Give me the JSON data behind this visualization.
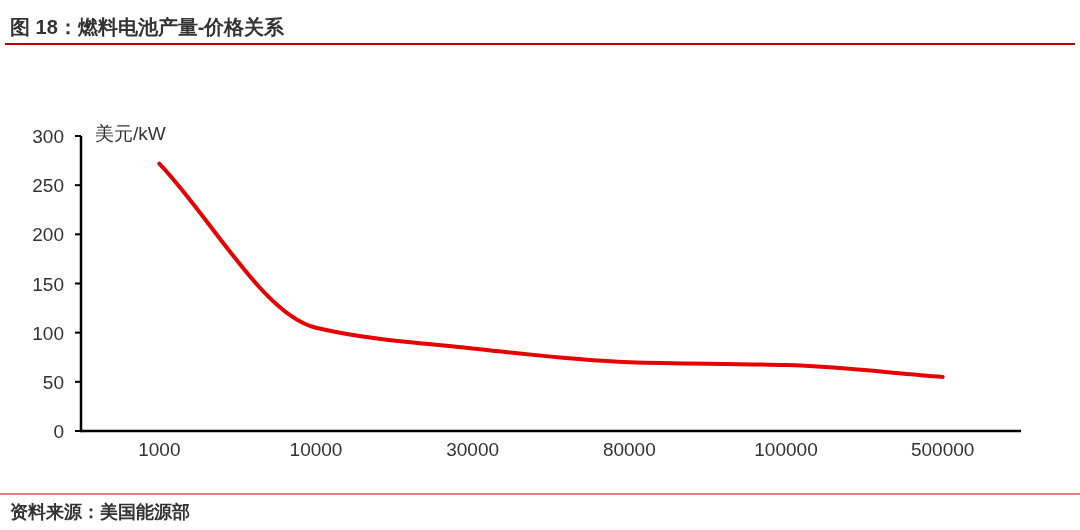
{
  "chart_data": {
    "type": "line",
    "title": "图 18：燃料电池产量-价格关系",
    "ylabel": "美元/kW",
    "categories": [
      "1000",
      "10000",
      "30000",
      "80000",
      "100000",
      "500000"
    ],
    "series": [
      {
        "color": "#e60000",
        "values": [
          272,
          105,
          84,
          70,
          67,
          55
        ]
      }
    ],
    "ylim": [
      0,
      300
    ],
    "yticks": [
      0,
      50,
      100,
      150,
      200,
      250,
      300
    ],
    "annotations": [
      "资料来源：美国能源部"
    ]
  }
}
